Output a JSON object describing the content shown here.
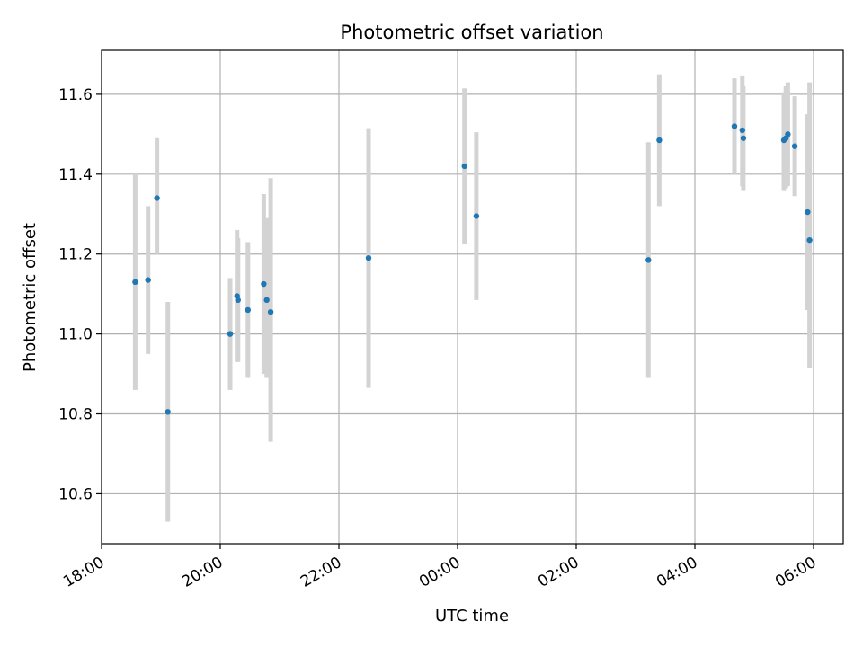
{
  "chart_data": {
    "type": "scatter",
    "title": "Photometric offset variation",
    "xlabel": "UTC time",
    "ylabel": "Photometric offset",
    "x_ticks": [
      "18:00",
      "20:00",
      "22:00",
      "00:00",
      "02:00",
      "04:00",
      "06:00"
    ],
    "y_ticks": [
      "10.6",
      "10.8",
      "11.0",
      "11.2",
      "11.4",
      "11.6"
    ],
    "x_range": [
      "18:00",
      "06:30 (next day)"
    ],
    "ylim": [
      10.475,
      11.71
    ],
    "grid": true,
    "marker_color": "#1f77b4",
    "errorbar_color": "#d3d3d3",
    "points": [
      {
        "x": "18:34",
        "y": 11.13,
        "y_low": 10.86,
        "y_high": 11.4
      },
      {
        "x": "18:47",
        "y": 11.135,
        "y_low": 10.95,
        "y_high": 11.32
      },
      {
        "x": "18:56",
        "y": 11.34,
        "y_low": 11.2,
        "y_high": 11.49
      },
      {
        "x": "19:07",
        "y": 10.805,
        "y_low": 10.53,
        "y_high": 11.08
      },
      {
        "x": "20:10",
        "y": 11.0,
        "y_low": 10.86,
        "y_high": 11.14
      },
      {
        "x": "20:17",
        "y": 11.095,
        "y_low": 10.93,
        "y_high": 11.26
      },
      {
        "x": "20:18",
        "y": 11.085,
        "y_low": 10.93,
        "y_high": 11.24
      },
      {
        "x": "20:28",
        "y": 11.06,
        "y_low": 10.89,
        "y_high": 11.23
      },
      {
        "x": "20:44",
        "y": 11.125,
        "y_low": 10.9,
        "y_high": 11.35
      },
      {
        "x": "20:47",
        "y": 11.085,
        "y_low": 10.89,
        "y_high": 11.29
      },
      {
        "x": "20:51",
        "y": 11.055,
        "y_low": 10.73,
        "y_high": 11.39
      },
      {
        "x": "22:30",
        "y": 11.19,
        "y_low": 10.865,
        "y_high": 11.515
      },
      {
        "x": "00:07",
        "y": 11.42,
        "y_low": 11.225,
        "y_high": 11.615
      },
      {
        "x": "00:19",
        "y": 11.295,
        "y_low": 11.085,
        "y_high": 11.505
      },
      {
        "x": "03:13",
        "y": 11.185,
        "y_low": 10.89,
        "y_high": 11.48
      },
      {
        "x": "03:24",
        "y": 11.485,
        "y_low": 11.32,
        "y_high": 11.65
      },
      {
        "x": "04:40",
        "y": 11.52,
        "y_low": 11.4,
        "y_high": 11.64
      },
      {
        "x": "04:48",
        "y": 11.51,
        "y_low": 11.37,
        "y_high": 11.645
      },
      {
        "x": "04:49",
        "y": 11.49,
        "y_low": 11.36,
        "y_high": 11.62
      },
      {
        "x": "05:30",
        "y": 11.485,
        "y_low": 11.36,
        "y_high": 11.605
      },
      {
        "x": "05:32",
        "y": 11.49,
        "y_low": 11.365,
        "y_high": 11.62
      },
      {
        "x": "05:34",
        "y": 11.5,
        "y_low": 11.37,
        "y_high": 11.63
      },
      {
        "x": "05:41",
        "y": 11.47,
        "y_low": 11.345,
        "y_high": 11.595
      },
      {
        "x": "05:54",
        "y": 11.305,
        "y_low": 11.06,
        "y_high": 11.55
      },
      {
        "x": "05:56",
        "y": 11.235,
        "y_low": 10.915,
        "y_high": 11.63
      }
    ]
  }
}
